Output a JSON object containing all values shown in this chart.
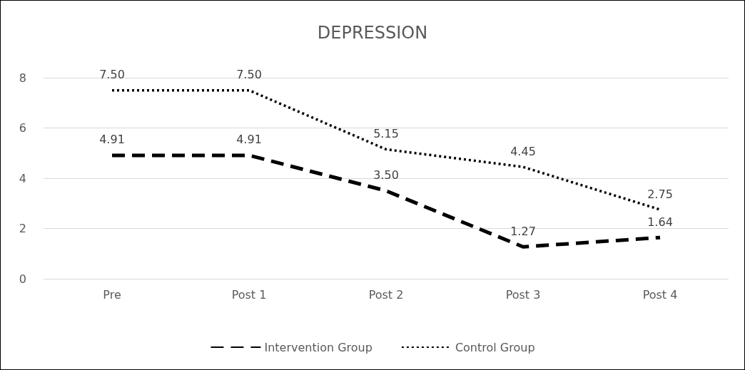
{
  "chart_data": {
    "type": "line",
    "title": "DEPRESSION",
    "categories": [
      "Pre",
      "Post 1",
      "Post 2",
      "Post 3",
      "Post 4"
    ],
    "series": [
      {
        "name": "Intervention Group",
        "color": "#000000",
        "line_style": "dashed",
        "values": [
          4.91,
          4.91,
          3.5,
          1.27,
          1.64
        ],
        "value_labels": [
          "4.91",
          "4.91",
          "3.50",
          "1.27",
          "1.64"
        ]
      },
      {
        "name": "Control Group",
        "color": "#000000",
        "line_style": "dotted",
        "values": [
          7.5,
          7.5,
          5.15,
          4.45,
          2.75
        ],
        "value_labels": [
          "7.50",
          "7.50",
          "5.15",
          "4.45",
          "2.75"
        ]
      }
    ],
    "ylim": [
      0,
      8
    ],
    "yticks": [
      0,
      2,
      4,
      6,
      8
    ],
    "grid": "y",
    "legend": "bottom",
    "marker": "none"
  }
}
